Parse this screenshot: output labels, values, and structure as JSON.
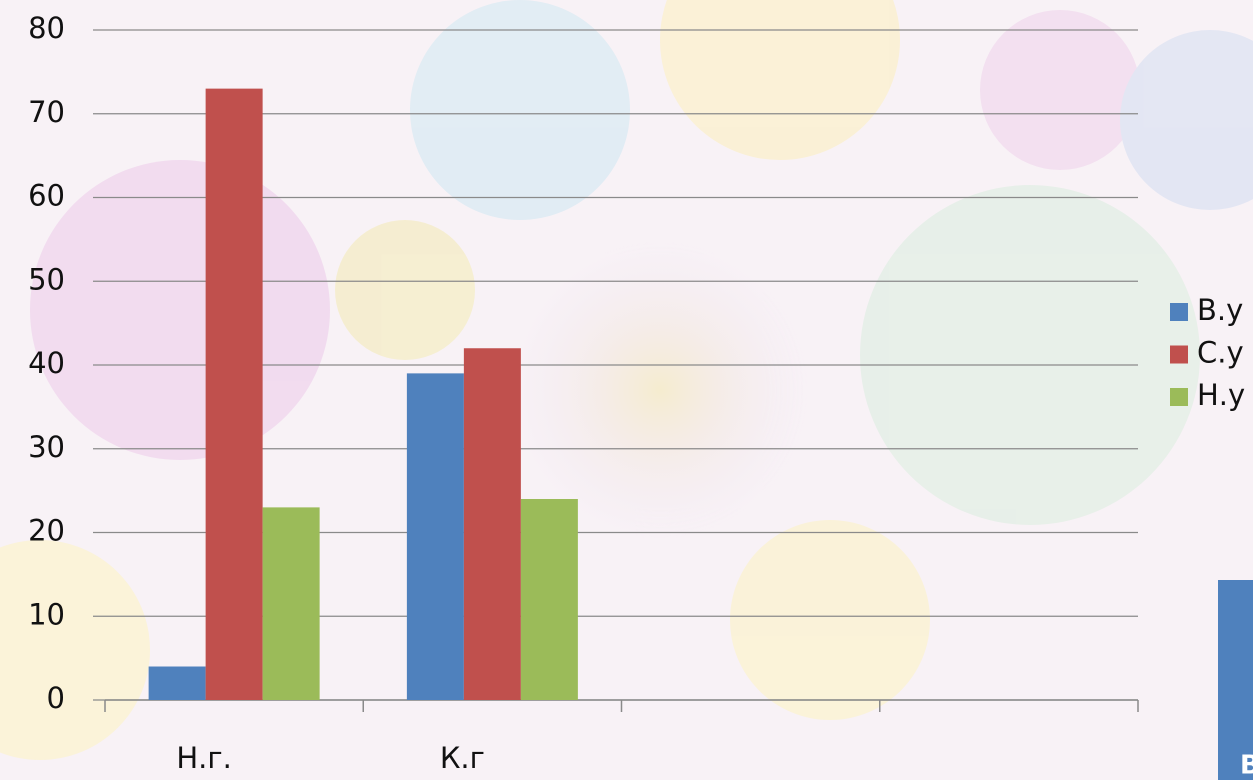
{
  "chart_data": {
    "type": "bar",
    "categories": [
      "Н.г.",
      "К.г",
      null,
      null
    ],
    "series": [
      {
        "name": "В.у",
        "color": "#4f81bd",
        "values": [
          4,
          39,
          null,
          null
        ]
      },
      {
        "name": "С.у",
        "color": "#c0504d",
        "values": [
          73,
          42,
          null,
          null
        ]
      },
      {
        "name": "Н.у",
        "color": "#9bbb59",
        "values": [
          23,
          24,
          null,
          null
        ]
      }
    ],
    "ylim": [
      0,
      80
    ],
    "yticks": [
      0,
      10,
      20,
      30,
      40,
      50,
      60,
      70,
      80
    ],
    "grid": true,
    "legend": "right"
  },
  "corner_label": "В"
}
